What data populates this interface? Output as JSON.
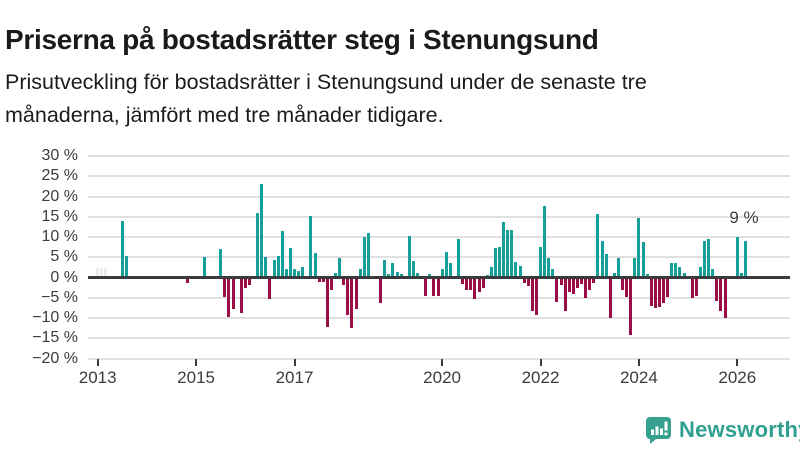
{
  "title": "Priserna på bostadsrätter steg i Stenungsund",
  "subtitle": {
    "line1": "Prisutveckling för bostadsrätter i Stenungsund under de senaste tre",
    "line2": "månaderna, jämfört med tre månader tidigare."
  },
  "annotation": {
    "text": "9 %"
  },
  "logo": {
    "text": "Newsworthy"
  },
  "colors": {
    "positive": "#17a09b",
    "negative": "#9a0e47",
    "muted": "#eaefee",
    "grid": "#e0e0e0",
    "zero_line": "#3b3b3b",
    "text": "#1a1a1a",
    "axis_text": "#3c3c3c",
    "logo": "#319f90"
  },
  "chart_data": {
    "type": "bar",
    "unit": "%",
    "title": "Prisutveckling för bostadsrätter i Stenungsund",
    "xlabel": "",
    "ylabel": "",
    "ylim": [
      -20,
      30
    ],
    "ytick_step": 5,
    "grid": true,
    "legend_position": "none",
    "annotation_last_value": "9 %",
    "yticks": [
      {
        "v": 30,
        "label": "30 %"
      },
      {
        "v": 25,
        "label": "25 %"
      },
      {
        "v": 20,
        "label": "20 %"
      },
      {
        "v": 15,
        "label": "15 %"
      },
      {
        "v": 10,
        "label": "10 %"
      },
      {
        "v": 5,
        "label": "5 %"
      },
      {
        "v": 0,
        "label": "0 %"
      },
      {
        "v": -5,
        "label": "−5 %"
      },
      {
        "v": -10,
        "label": "−10 %"
      },
      {
        "v": -15,
        "label": "−15 %"
      },
      {
        "v": -20,
        "label": "−20 %"
      }
    ],
    "xticks": [
      "2013",
      "2015",
      "2017",
      "2020",
      "2022",
      "2024",
      "2026"
    ],
    "muted_months": [
      "2013-01",
      "2013-02",
      "2013-03"
    ],
    "series": [
      [
        "2013-01",
        2.3
      ],
      [
        "2013-02",
        2.3
      ],
      [
        "2013-03",
        2.3
      ],
      [
        "2013-07",
        14.0
      ],
      [
        "2013-08",
        5.2
      ],
      [
        "2014-11",
        -1.0
      ],
      [
        "2015-03",
        5.0
      ],
      [
        "2015-07",
        7.0
      ],
      [
        "2015-08",
        -4.5
      ],
      [
        "2015-09",
        -9.3
      ],
      [
        "2015-10",
        -7.3
      ],
      [
        "2015-12",
        -8.5
      ],
      [
        "2016-01",
        -2.2
      ],
      [
        "2016-02",
        -1.4
      ],
      [
        "2016-04",
        16.0
      ],
      [
        "2016-05",
        23.0
      ],
      [
        "2016-06",
        5.0
      ],
      [
        "2016-07",
        -5.0
      ],
      [
        "2016-08",
        4.3
      ],
      [
        "2016-09",
        5.3
      ],
      [
        "2016-10",
        11.5
      ],
      [
        "2016-11",
        2.2
      ],
      [
        "2016-12",
        7.2
      ],
      [
        "2017-01",
        2.0
      ],
      [
        "2017-02",
        1.5
      ],
      [
        "2017-03",
        2.5
      ],
      [
        "2017-05",
        15.3
      ],
      [
        "2017-06",
        6.1
      ],
      [
        "2017-07",
        -0.7
      ],
      [
        "2017-08",
        -0.8
      ],
      [
        "2017-09",
        -11.8
      ],
      [
        "2017-10",
        -2.6
      ],
      [
        "2017-11",
        1.1
      ],
      [
        "2017-12",
        4.7
      ],
      [
        "2018-01",
        -1.5
      ],
      [
        "2018-02",
        -9.0
      ],
      [
        "2018-03",
        -12.0
      ],
      [
        "2018-04",
        -7.3
      ],
      [
        "2018-05",
        2.2
      ],
      [
        "2018-06",
        10.0
      ],
      [
        "2018-07",
        11.0
      ],
      [
        "2018-10",
        -6.0
      ],
      [
        "2018-11",
        4.3
      ],
      [
        "2018-12",
        0.8
      ],
      [
        "2019-01",
        3.5
      ],
      [
        "2019-02",
        1.4
      ],
      [
        "2019-03",
        0.8
      ],
      [
        "2019-05",
        10.3
      ],
      [
        "2019-06",
        4.0
      ],
      [
        "2019-07",
        1.0
      ],
      [
        "2019-09",
        -4.1
      ],
      [
        "2019-10",
        0.9
      ],
      [
        "2019-11",
        -4.1
      ],
      [
        "2019-12",
        -4.1
      ],
      [
        "2020-01",
        2.2
      ],
      [
        "2020-02",
        6.3
      ],
      [
        "2020-03",
        3.5
      ],
      [
        "2020-05",
        9.6
      ],
      [
        "2020-06",
        -1.3
      ],
      [
        "2020-07",
        -2.7
      ],
      [
        "2020-08",
        -2.7
      ],
      [
        "2020-09",
        -5.0
      ],
      [
        "2020-10",
        -3.1
      ],
      [
        "2020-11",
        -2.1
      ],
      [
        "2020-12",
        0.6
      ],
      [
        "2021-01",
        2.5
      ],
      [
        "2021-02",
        7.2
      ],
      [
        "2021-03",
        7.6
      ],
      [
        "2021-04",
        13.7
      ],
      [
        "2021-05",
        11.7
      ],
      [
        "2021-06",
        11.7
      ],
      [
        "2021-07",
        3.8
      ],
      [
        "2021-08",
        2.9
      ],
      [
        "2021-09",
        -0.9
      ],
      [
        "2021-10",
        -1.7
      ],
      [
        "2021-11",
        -7.9
      ],
      [
        "2021-12",
        -8.9
      ],
      [
        "2022-01",
        7.6
      ],
      [
        "2022-02",
        17.6
      ],
      [
        "2022-03",
        4.9
      ],
      [
        "2022-04",
        2.2
      ],
      [
        "2022-05",
        -5.8
      ],
      [
        "2022-06",
        -1.5
      ],
      [
        "2022-07",
        -7.9
      ],
      [
        "2022-08",
        -3.1
      ],
      [
        "2022-09",
        -3.8
      ],
      [
        "2022-10",
        -2.1
      ],
      [
        "2022-11",
        -1.3
      ],
      [
        "2022-12",
        -4.8
      ],
      [
        "2023-01",
        -2.7
      ],
      [
        "2023-02",
        -0.9
      ],
      [
        "2023-03",
        15.8
      ],
      [
        "2023-04",
        9.1
      ],
      [
        "2023-05",
        5.9
      ],
      [
        "2023-06",
        -9.7
      ],
      [
        "2023-07",
        1.0
      ],
      [
        "2023-08",
        4.7
      ],
      [
        "2023-09",
        -2.7
      ],
      [
        "2023-10",
        -4.5
      ],
      [
        "2023-11",
        -13.8
      ],
      [
        "2023-12",
        4.7
      ],
      [
        "2024-01",
        14.6
      ],
      [
        "2024-02",
        8.8
      ],
      [
        "2024-03",
        0.9
      ],
      [
        "2024-04",
        -6.6
      ],
      [
        "2024-05",
        -7.1
      ],
      [
        "2024-06",
        -6.8
      ],
      [
        "2024-07",
        -6.0
      ],
      [
        "2024-08",
        -4.4
      ],
      [
        "2024-09",
        3.6
      ],
      [
        "2024-10",
        3.6
      ],
      [
        "2024-11",
        2.6
      ],
      [
        "2024-12",
        1.1
      ],
      [
        "2025-02",
        -4.8
      ],
      [
        "2025-03",
        -4.2
      ],
      [
        "2025-04",
        2.5
      ],
      [
        "2025-05",
        9.1
      ],
      [
        "2025-06",
        9.6
      ],
      [
        "2025-07",
        2.0
      ],
      [
        "2025-08",
        -5.5
      ],
      [
        "2025-09",
        -8.0
      ],
      [
        "2025-10",
        -9.7
      ],
      [
        "2026-01",
        10.0
      ],
      [
        "2026-02",
        1.0
      ],
      [
        "2026-03",
        9.0
      ]
    ]
  }
}
